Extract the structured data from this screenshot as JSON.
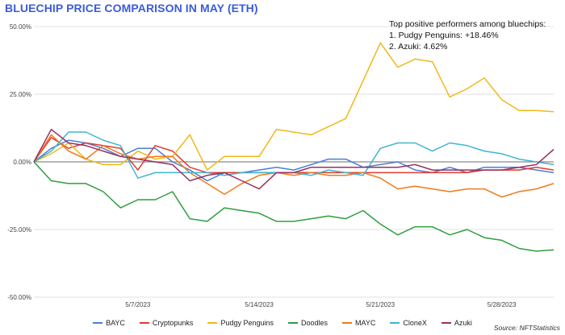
{
  "chart_data": {
    "type": "line",
    "title": "BLUECHIP PRICE COMPARISON IN MAY (ETH)",
    "annotation": {
      "line1": "Top positive performers among bluechips:",
      "line2": "1. Pudgy Penguins: +18.46%",
      "line3": "2. Azuki: 4.62%"
    },
    "source": "Source: NFTStatistics",
    "ylim": [
      -50,
      50
    ],
    "y_ticks": [
      {
        "value": 50,
        "label": "50.00%"
      },
      {
        "value": 25,
        "label": "25.00%"
      },
      {
        "value": 0,
        "label": "0.00%"
      },
      {
        "value": -25,
        "label": "-25.00%"
      },
      {
        "value": -50,
        "label": "-50.00%"
      }
    ],
    "x_count": 31,
    "x_ticks": [
      {
        "index": 6,
        "label": "5/7/2023"
      },
      {
        "index": 13,
        "label": "5/14/2023"
      },
      {
        "index": 20,
        "label": "5/21/2023"
      },
      {
        "index": 27,
        "label": "5/28/2023"
      }
    ],
    "xlabel": "",
    "ylabel": "",
    "series": [
      {
        "name": "BAYC",
        "color": "#4a7fd4",
        "values": [
          0,
          5,
          8,
          7,
          5,
          2,
          5,
          5,
          0,
          -3,
          -7,
          -4,
          -4,
          -3,
          -2,
          -3,
          -1,
          1,
          1,
          -2,
          -1,
          0,
          -3,
          -4,
          -2,
          -4,
          -2,
          -2,
          -2,
          -3,
          -4
        ]
      },
      {
        "name": "Cryptopunks",
        "color": "#e03b2f",
        "values": [
          0,
          9,
          5,
          7,
          6,
          5,
          -3,
          6,
          4,
          -2,
          -4,
          -4,
          -4,
          -4,
          -4,
          -4,
          -4,
          -4,
          -4,
          -4,
          -4,
          -4,
          -4,
          -4,
          -4,
          -4,
          -3,
          -3,
          -3,
          -2,
          -3
        ]
      },
      {
        "name": "Pudgy Penguins",
        "color": "#f0b81a",
        "values": [
          0,
          3,
          7,
          1,
          -1,
          -1,
          4,
          1,
          2,
          10,
          -3,
          2,
          2,
          2,
          12,
          11,
          10,
          13,
          16,
          30,
          44,
          35,
          38,
          37,
          24,
          27,
          31,
          23,
          19,
          19,
          18.5
        ]
      },
      {
        "name": "Doodles",
        "color": "#2e9e3e",
        "values": [
          0,
          -7,
          -8,
          -8,
          -11,
          -17,
          -14,
          -14,
          -11,
          -21,
          -22,
          -17,
          -18,
          -19,
          -22,
          -22,
          -21,
          -20,
          -21,
          -18,
          -23,
          -27,
          -24,
          -24,
          -27,
          -25,
          -28,
          -29,
          -32,
          -33,
          -32.5
        ]
      },
      {
        "name": "MAYC",
        "color": "#f07a1a",
        "values": [
          0,
          10,
          4,
          1,
          6,
          3,
          1,
          2,
          2,
          -4,
          -8,
          -12,
          -8,
          -5,
          -4,
          -5,
          -4,
          -5,
          -5,
          -4,
          -6,
          -10,
          -9,
          -10,
          -11,
          -10,
          -10,
          -13,
          -11,
          -10,
          -8
        ]
      },
      {
        "name": "CloneX",
        "color": "#3fb5cf",
        "values": [
          0,
          4,
          11,
          11,
          8,
          6,
          -6,
          -4,
          -4,
          -4,
          -4,
          -5,
          -4,
          -4,
          -4,
          -4,
          -5,
          -3,
          -4,
          -5,
          5,
          7,
          7,
          4,
          7,
          6,
          4,
          3,
          1,
          0,
          -1
        ]
      },
      {
        "name": "Azuki",
        "color": "#9b2f5e",
        "values": [
          0,
          12,
          7,
          6,
          4,
          2,
          1,
          0,
          -1,
          -7,
          -5,
          -4,
          -7,
          -10,
          -4,
          -4,
          -2,
          -2,
          -2,
          -2,
          -2,
          -2,
          -1,
          -3,
          -3,
          -3,
          -3,
          -3,
          -2,
          -1,
          4.6
        ]
      }
    ]
  }
}
